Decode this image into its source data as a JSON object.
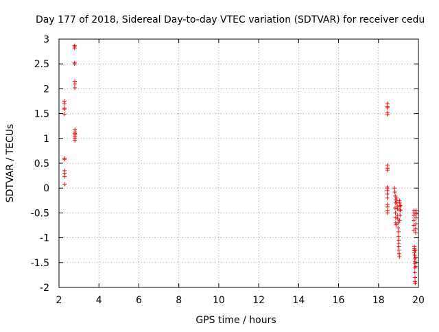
{
  "chart_data": {
    "type": "scatter",
    "title": "Day 177 of 2018, Sidereal Day-to-day VTEC variation (SDTVAR) for receiver cedu",
    "xlabel": "GPS time / hours",
    "ylabel": "SDTVAR / TECUs",
    "xlim": [
      2,
      20
    ],
    "ylim": [
      -2,
      3
    ],
    "x_ticks": [
      "2",
      "4",
      "6",
      "8",
      "10",
      "12",
      "14",
      "16",
      "18",
      "20"
    ],
    "y_ticks": [
      "3",
      "2.5",
      "2",
      "1.5",
      "1",
      "0.5",
      "0",
      "-0.5",
      "-1",
      "-1.5",
      "-2"
    ],
    "x_tick_values": [
      2,
      4,
      6,
      8,
      10,
      12,
      14,
      16,
      18,
      20
    ],
    "y_tick_values": [
      3,
      2.5,
      2,
      1.5,
      1,
      0.5,
      0,
      -0.5,
      -1,
      -1.5,
      -2
    ],
    "grid": true,
    "marker": "plus",
    "color": "#ff0000",
    "series": [
      {
        "points": [
          [
            2.27,
            1.75
          ],
          [
            2.27,
            1.7
          ],
          [
            2.27,
            1.61
          ],
          [
            2.27,
            1.59
          ],
          [
            2.27,
            1.49
          ],
          [
            2.28,
            0.6
          ],
          [
            2.28,
            0.58
          ],
          [
            2.28,
            0.35
          ],
          [
            2.28,
            0.3
          ],
          [
            2.28,
            0.23
          ],
          [
            2.28,
            0.08
          ],
          [
            2.78,
            2.87
          ],
          [
            2.78,
            2.85
          ],
          [
            2.78,
            2.82
          ],
          [
            2.78,
            2.52
          ],
          [
            2.78,
            2.5
          ],
          [
            2.79,
            2.15
          ],
          [
            2.79,
            2.1
          ],
          [
            2.79,
            2.02
          ],
          [
            2.8,
            1.18
          ],
          [
            2.8,
            1.13
          ],
          [
            2.8,
            1.1
          ],
          [
            2.8,
            1.07
          ],
          [
            2.8,
            1.03
          ],
          [
            2.8,
            1.0
          ],
          [
            2.8,
            0.96
          ],
          [
            18.45,
            1.7
          ],
          [
            18.45,
            1.64
          ],
          [
            18.45,
            1.62
          ],
          [
            18.45,
            1.52
          ],
          [
            18.45,
            1.48
          ],
          [
            18.45,
            0.46
          ],
          [
            18.45,
            0.4
          ],
          [
            18.45,
            0.36
          ],
          [
            18.44,
            0.02
          ],
          [
            18.44,
            -0.01
          ],
          [
            18.44,
            -0.05
          ],
          [
            18.44,
            -0.12
          ],
          [
            18.44,
            -0.2
          ],
          [
            18.45,
            -0.33
          ],
          [
            18.45,
            -0.38
          ],
          [
            18.45,
            -0.45
          ],
          [
            18.45,
            -0.5
          ],
          [
            18.8,
            0.0
          ],
          [
            18.82,
            -0.08
          ],
          [
            18.84,
            -0.16
          ],
          [
            18.86,
            -0.24
          ],
          [
            18.86,
            -0.3
          ],
          [
            18.83,
            -0.4
          ],
          [
            18.85,
            -0.5
          ],
          [
            18.86,
            -0.6
          ],
          [
            18.86,
            -0.7
          ],
          [
            18.88,
            -0.74
          ],
          [
            18.9,
            -0.2
          ],
          [
            18.92,
            -0.28
          ],
          [
            18.94,
            -0.36
          ],
          [
            18.95,
            -0.42
          ],
          [
            18.96,
            -0.55
          ],
          [
            18.97,
            -0.62
          ],
          [
            18.98,
            -0.7
          ],
          [
            18.98,
            -0.8
          ],
          [
            19.0,
            -0.88
          ],
          [
            19.01,
            -0.97
          ],
          [
            19.02,
            -1.05
          ],
          [
            19.02,
            -1.12
          ],
          [
            19.05,
            -0.25
          ],
          [
            19.06,
            -0.3
          ],
          [
            19.07,
            -0.38
          ],
          [
            19.08,
            -0.44
          ],
          [
            19.02,
            -1.18
          ],
          [
            19.03,
            -1.25
          ],
          [
            19.04,
            -1.32
          ],
          [
            19.05,
            -1.38
          ],
          [
            19.1,
            -0.35
          ],
          [
            19.1,
            -0.45
          ],
          [
            19.08,
            -0.55
          ],
          [
            19.06,
            -0.65
          ],
          [
            19.78,
            -0.45
          ],
          [
            19.78,
            -0.5
          ],
          [
            19.78,
            -0.55
          ],
          [
            19.77,
            -0.65
          ],
          [
            19.77,
            -0.75
          ],
          [
            19.77,
            -0.85
          ],
          [
            19.8,
            -1.18
          ],
          [
            19.8,
            -1.22
          ],
          [
            19.8,
            -1.26
          ],
          [
            19.8,
            -1.3
          ],
          [
            19.81,
            -1.35
          ],
          [
            19.82,
            -1.42
          ],
          [
            19.82,
            -1.48
          ],
          [
            19.82,
            -1.52
          ],
          [
            19.82,
            -1.6
          ],
          [
            19.82,
            -1.7
          ],
          [
            19.83,
            -1.8
          ],
          [
            19.83,
            -1.88
          ],
          [
            19.84,
            -1.92
          ],
          [
            19.88,
            -0.45
          ],
          [
            19.88,
            -0.52
          ],
          [
            19.88,
            -0.6
          ],
          [
            19.87,
            -0.72
          ],
          [
            19.86,
            -0.82
          ],
          [
            19.86,
            -0.9
          ],
          [
            19.85,
            -1.25
          ],
          [
            19.86,
            -1.4
          ],
          [
            19.87,
            -1.58
          ]
        ]
      }
    ]
  }
}
